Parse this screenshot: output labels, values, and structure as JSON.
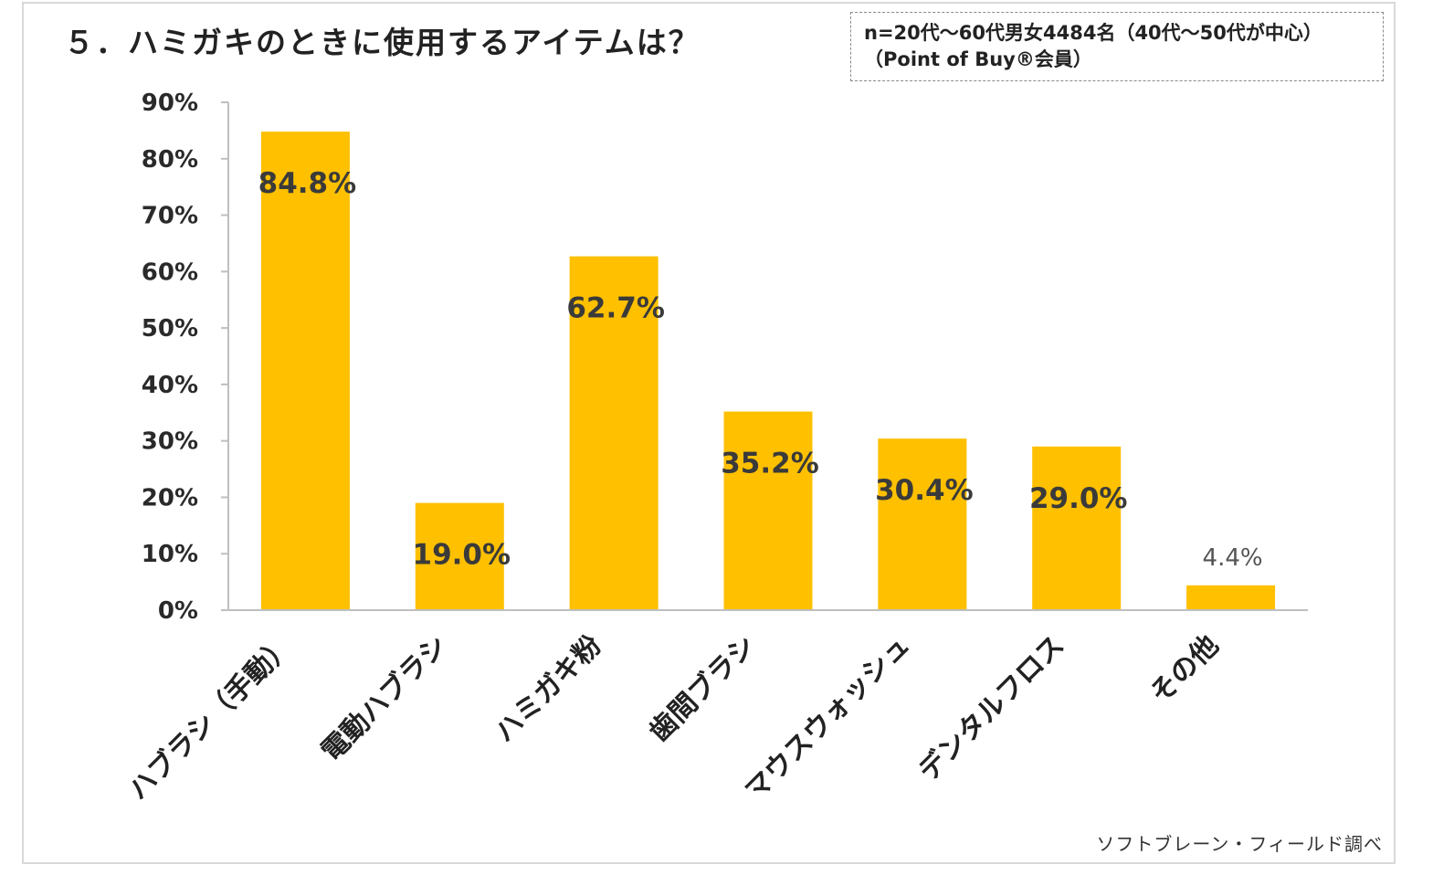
{
  "header": {
    "title": "５．ハミガキのときに使用するアイテムは？"
  },
  "note": {
    "line1": "n=20代～60代男女4484名（40代～50代が中心）",
    "line2": "（Point of Buy®会員）"
  },
  "source": "ソフトブレーン・フィールド調べ",
  "chart_data": {
    "type": "bar",
    "title": "５．ハミガキのときに使用するアイテムは？",
    "categories": [
      "ハブラシ（手動）",
      "電動ハブラシ",
      "ハミガキ粉",
      "歯間ブラシ",
      "マウスウォッシュ",
      "デンタルフロス",
      "その他"
    ],
    "values": [
      84.8,
      19.0,
      62.7,
      35.2,
      30.4,
      29.0,
      4.4
    ],
    "data_labels": [
      "84.8%",
      "19.0%",
      "62.7%",
      "35.2%",
      "30.4%",
      "29.0%",
      "4.4%"
    ],
    "ylim": [
      0,
      90
    ],
    "yticks": [
      0,
      10,
      20,
      30,
      40,
      50,
      60,
      70,
      80,
      90
    ],
    "ytick_labels": [
      "0%",
      "10%",
      "20%",
      "30%",
      "40%",
      "50%",
      "60%",
      "70%",
      "80%",
      "90%"
    ],
    "bar_color": "#FFC000",
    "axis_color": "#bfbfbf",
    "grid": false,
    "legend": "none"
  }
}
